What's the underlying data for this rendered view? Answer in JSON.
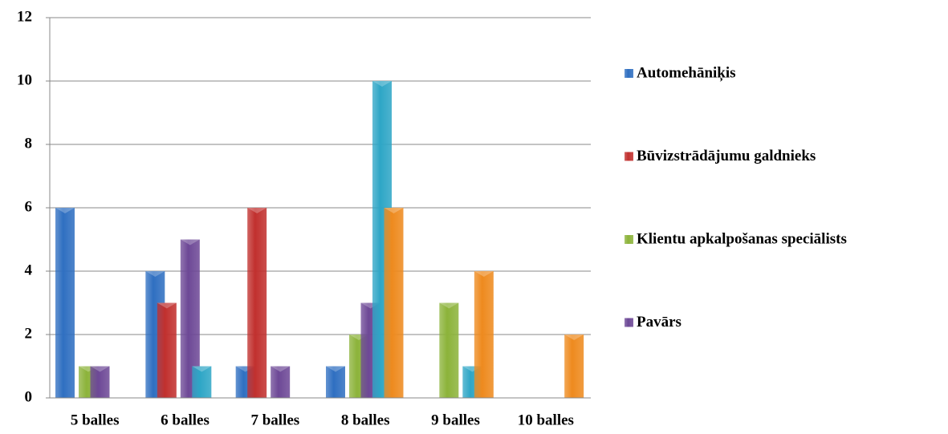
{
  "chart_data": {
    "type": "bar",
    "categories": [
      "5 balles",
      "6 balles",
      "7 balles",
      "8 balles",
      "9 balles",
      "10 balles"
    ],
    "series": [
      {
        "name": "Automehāniķis",
        "color": "#2f6fc1",
        "values": [
          6,
          4,
          1,
          1,
          0,
          0
        ]
      },
      {
        "name": "Būvizstrādājumu galdnieks",
        "color": "#c1302e",
        "values": [
          0,
          3,
          6,
          0,
          0,
          0
        ]
      },
      {
        "name": "Klientu apkalpošanas speciālists",
        "color": "#8cb33a",
        "values": [
          1,
          0,
          0,
          2,
          3,
          0
        ]
      },
      {
        "name": "Pavārs",
        "color": "#6d4896",
        "values": [
          1,
          5,
          1,
          3,
          0,
          0
        ]
      },
      {
        "color": "#2ea6c6",
        "values": [
          0,
          1,
          0,
          10,
          1,
          0
        ]
      },
      {
        "color": "#ee8a1e",
        "values": [
          0,
          0,
          0,
          6,
          4,
          2
        ]
      }
    ],
    "ylim": [
      0,
      12
    ],
    "yticks": [
      0,
      2,
      4,
      6,
      8,
      10,
      12
    ],
    "grid": true,
    "legend": "right"
  }
}
